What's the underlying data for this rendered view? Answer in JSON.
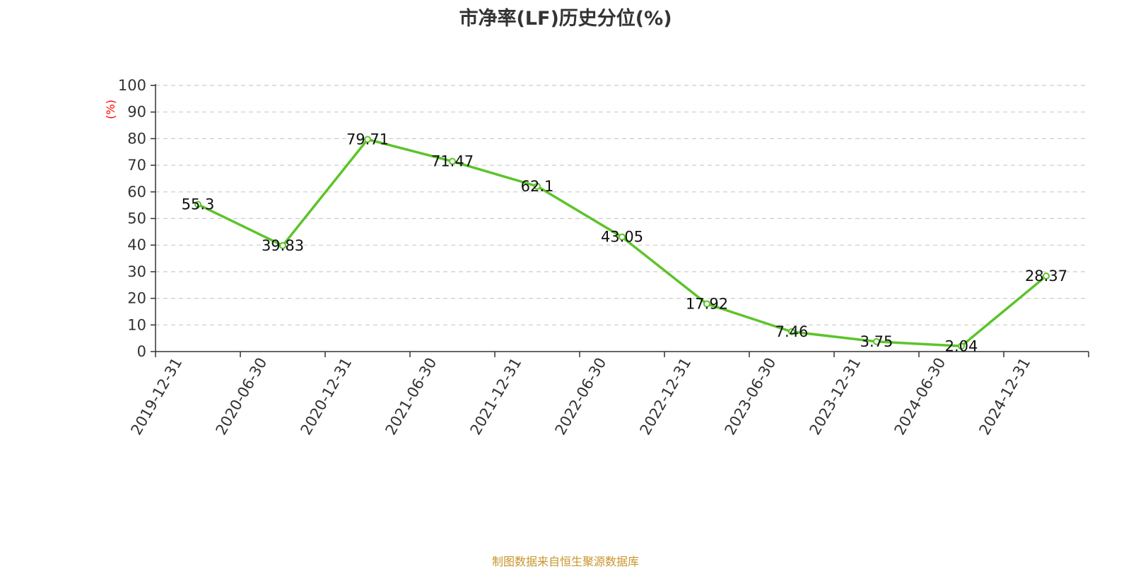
{
  "chart_data": {
    "type": "line",
    "title": "市净率(LF)历史分位(%)",
    "ylabel": "(%)",
    "xlabel": "",
    "ylim": [
      0,
      100
    ],
    "yticks": [
      0,
      10,
      20,
      30,
      40,
      50,
      60,
      70,
      80,
      90,
      100
    ],
    "categories": [
      "2019-12-31",
      "2020-06-30",
      "2020-12-31",
      "2021-06-30",
      "2021-12-31",
      "2022-06-30",
      "2022-12-31",
      "2023-06-30",
      "2023-12-31",
      "2024-06-30",
      "2024-12-31"
    ],
    "series": [
      {
        "values": [
          55.3,
          39.83,
          79.71,
          71.47,
          62.1,
          43.05,
          17.92,
          7.46,
          3.75,
          2.04,
          28.37
        ],
        "labels": [
          "55.3",
          "39.83",
          "79.71",
          "71.47",
          "62.1",
          "43.05",
          "17.92",
          "7.46",
          "3.75",
          "2.04",
          "28.37"
        ],
        "color": "#5cc42a"
      }
    ],
    "grid": true,
    "grid_color": "#cccccc",
    "ylabel_color": "#ff0000",
    "legend": "none"
  },
  "source_note": "制图数据来自恒生聚源数据库"
}
